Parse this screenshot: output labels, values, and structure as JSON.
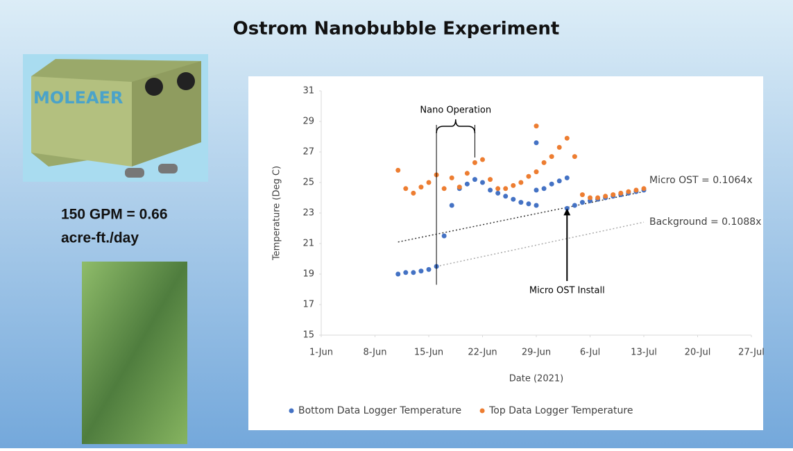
{
  "header": {
    "title": "Ostrom Nanobubble Experiment"
  },
  "product": {
    "brand": "MOLEAER",
    "caption": [
      "150 GPM = 0.66",
      "acre-ft./day"
    ]
  },
  "chart_data": {
    "type": "scatter",
    "x_label": "Date (2021)",
    "y_label": "Temperature (Deg C)",
    "xlim": [
      "1-Jun",
      "27-Jul"
    ],
    "xticks": [
      "1-Jun",
      "8-Jun",
      "15-Jun",
      "22-Jun",
      "29-Jun",
      "6-Jul",
      "13-Jul",
      "20-Jul",
      "27-Jul"
    ],
    "ylim": [
      15,
      31
    ],
    "yticks": [
      15,
      17,
      19,
      21,
      23,
      25,
      27,
      29,
      31
    ],
    "grid": false,
    "legend": "bottom",
    "series": [
      {
        "name": "Bottom Data Logger Temperature",
        "color": "#4472c4",
        "x": [
          "11-Jun",
          "12-Jun",
          "13-Jun",
          "14-Jun",
          "15-Jun",
          "16-Jun",
          "17-Jun",
          "18-Jun",
          "19-Jun",
          "20-Jun",
          "21-Jun",
          "22-Jun",
          "23-Jun",
          "24-Jun",
          "25-Jun",
          "26-Jun",
          "27-Jun",
          "28-Jun",
          "29-Jun",
          "29-Jun",
          "29-Jun",
          "30-Jun",
          "1-Jul",
          "2-Jul",
          "3-Jul",
          "3-Jul",
          "4-Jul",
          "5-Jul",
          "6-Jul",
          "7-Jul",
          "8-Jul",
          "9-Jul",
          "10-Jul",
          "11-Jul",
          "12-Jul",
          "13-Jul"
        ],
        "values": [
          19.0,
          19.1,
          19.1,
          19.2,
          19.3,
          19.5,
          21.5,
          23.5,
          24.6,
          24.9,
          25.2,
          25.0,
          24.5,
          24.3,
          24.1,
          23.9,
          23.7,
          23.6,
          23.5,
          27.6,
          24.5,
          24.6,
          24.9,
          25.1,
          25.3,
          23.3,
          23.5,
          23.7,
          23.8,
          23.9,
          24.0,
          24.1,
          24.2,
          24.3,
          24.4,
          24.5
        ]
      },
      {
        "name": "Top Data Logger Temperature",
        "color": "#ed7d31",
        "x": [
          "11-Jun",
          "12-Jun",
          "13-Jun",
          "14-Jun",
          "15-Jun",
          "16-Jun",
          "17-Jun",
          "18-Jun",
          "19-Jun",
          "20-Jun",
          "21-Jun",
          "22-Jun",
          "23-Jun",
          "24-Jun",
          "25-Jun",
          "26-Jun",
          "27-Jun",
          "28-Jun",
          "29-Jun",
          "29-Jun",
          "30-Jun",
          "1-Jul",
          "2-Jul",
          "3-Jul",
          "4-Jul",
          "5-Jul",
          "6-Jul",
          "7-Jul",
          "8-Jul",
          "9-Jul",
          "10-Jul",
          "11-Jul",
          "12-Jul",
          "13-Jul"
        ],
        "values": [
          25.8,
          24.6,
          24.3,
          24.7,
          25.0,
          25.5,
          24.6,
          25.3,
          24.7,
          25.6,
          26.3,
          26.5,
          25.2,
          24.6,
          24.6,
          24.8,
          25.0,
          25.4,
          28.7,
          25.7,
          26.3,
          26.7,
          27.3,
          27.9,
          26.7,
          24.2,
          24.0,
          24.0,
          24.1,
          24.2,
          24.3,
          24.4,
          24.5,
          24.6
        ]
      }
    ],
    "trendlines": [
      {
        "label": "Micro OST = 0.1064x",
        "x": [
          "11-Jun",
          "13-Jul"
        ],
        "y": [
          21.1,
          24.4
        ]
      },
      {
        "label": "Background = 0.1088x",
        "x": [
          "16-Jun",
          "13-Jul"
        ],
        "y": [
          19.5,
          22.4
        ]
      }
    ],
    "annotations": [
      {
        "text": "Nano Operation",
        "x": [
          "16-Jun",
          "21-Jun"
        ],
        "y": [
          18.3,
          28
        ]
      },
      {
        "text": "Micro OST Install",
        "x": [
          "3-Jul"
        ],
        "y": [
          19,
          23.3
        ]
      }
    ]
  }
}
